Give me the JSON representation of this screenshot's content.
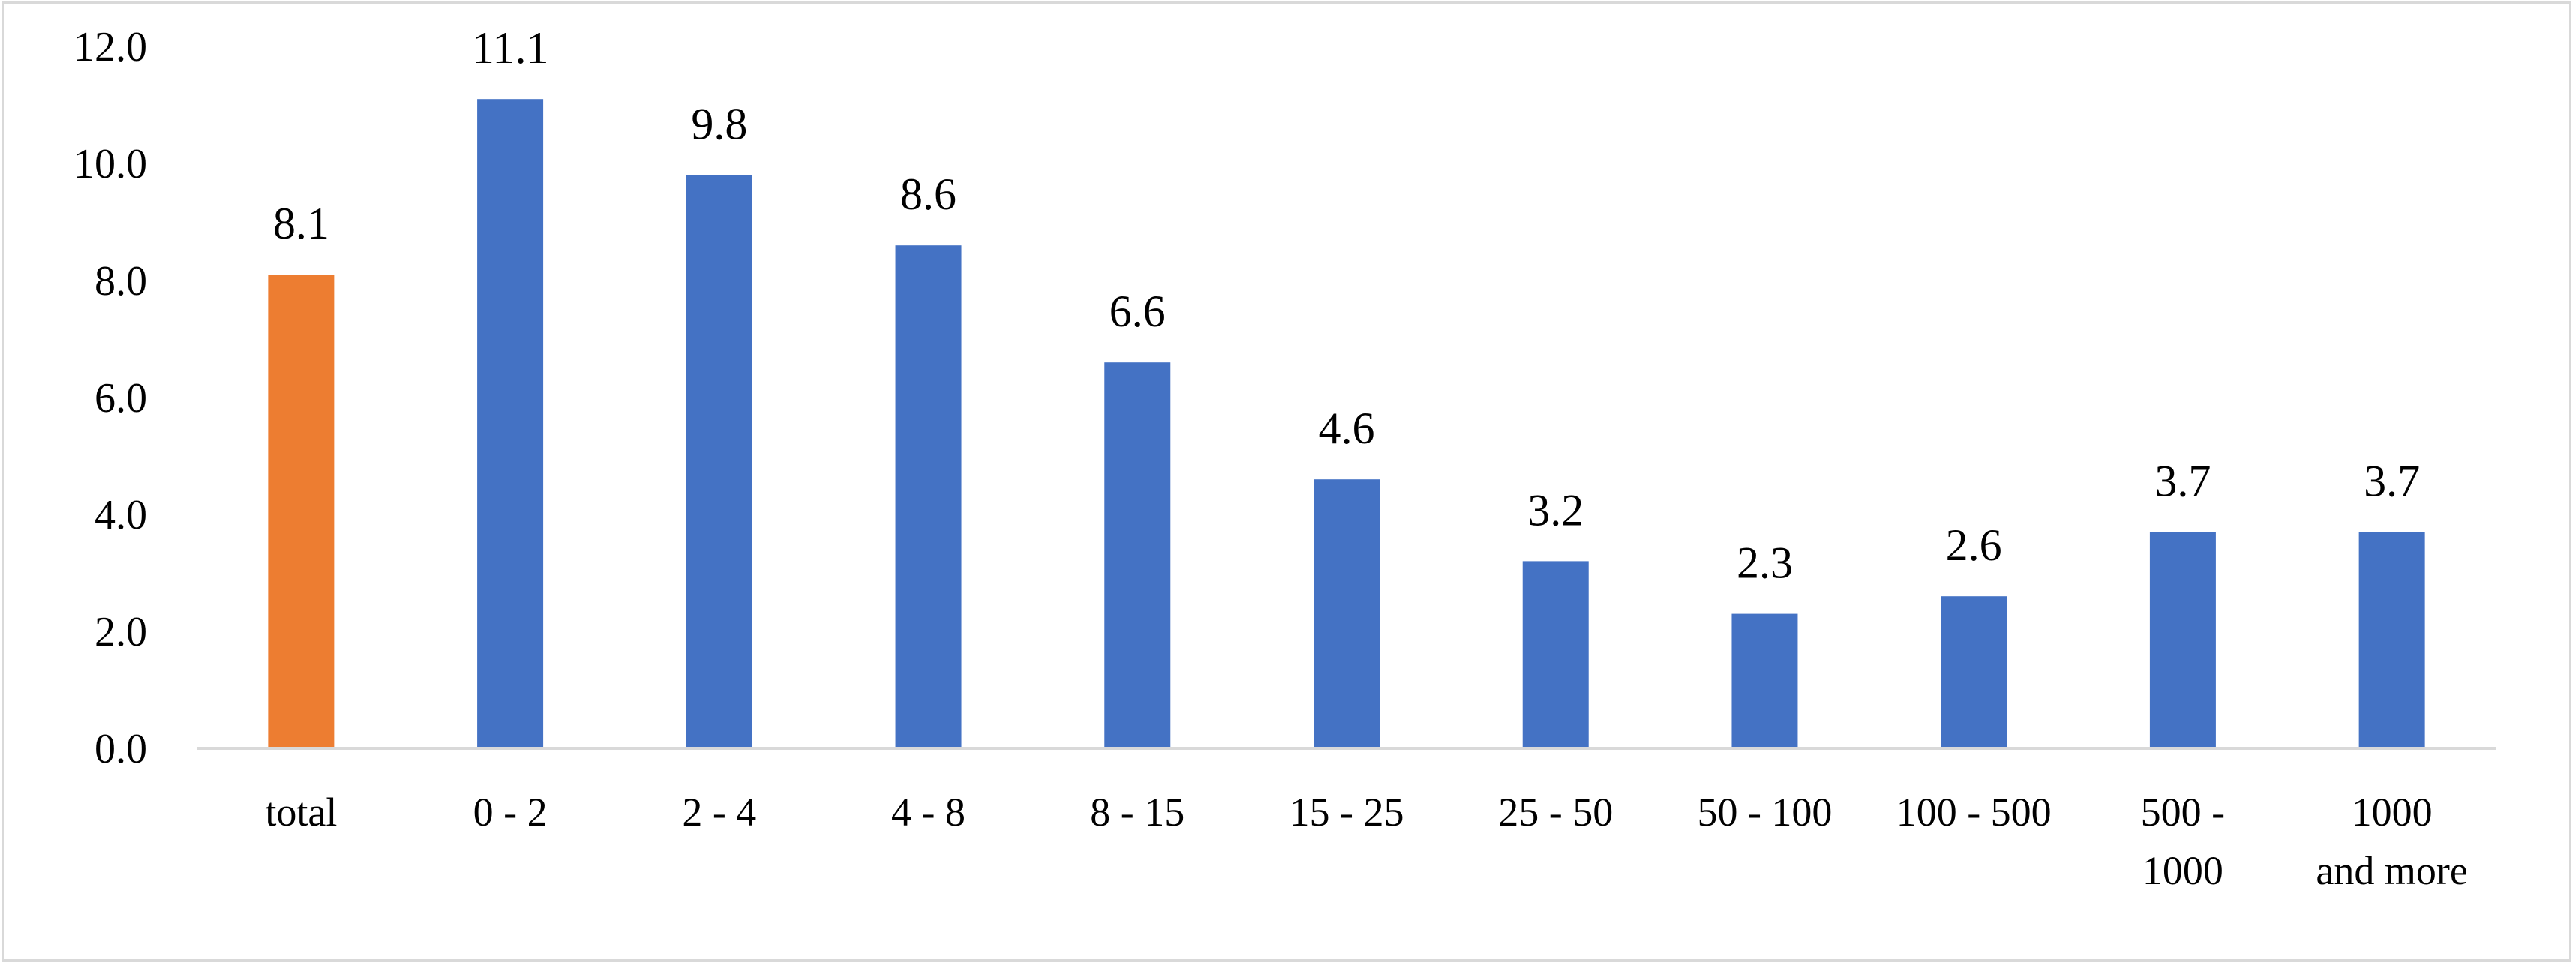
{
  "chart_data": {
    "type": "bar",
    "title": "",
    "xlabel": "",
    "ylabel": "",
    "ylim": [
      0,
      12
    ],
    "yticks": [
      "0.0",
      "2.0",
      "4.0",
      "6.0",
      "8.0",
      "10.0",
      "12.0"
    ],
    "grid": false,
    "legend": "none",
    "categories": [
      [
        "total"
      ],
      [
        "0 - 2"
      ],
      [
        "2 - 4"
      ],
      [
        "4 - 8"
      ],
      [
        "8 - 15"
      ],
      [
        "15 - 25"
      ],
      [
        "25 - 50"
      ],
      [
        "50 - 100"
      ],
      [
        "100 - 500"
      ],
      [
        "500 -",
        "1000"
      ],
      [
        "1000",
        "and more"
      ]
    ],
    "values": [
      8.1,
      11.1,
      9.8,
      8.6,
      6.6,
      4.6,
      3.2,
      2.3,
      2.6,
      3.7,
      3.7
    ],
    "value_labels": [
      "8.1",
      "11.1",
      "9.8",
      "8.6",
      "6.6",
      "4.6",
      "3.2",
      "2.3",
      "2.6",
      "3.7",
      "3.7"
    ],
    "colors": {
      "highlight": "#ED7D31",
      "bars": "#4472C4",
      "axis": "#d9d9d9"
    },
    "highlight_index": 0
  }
}
